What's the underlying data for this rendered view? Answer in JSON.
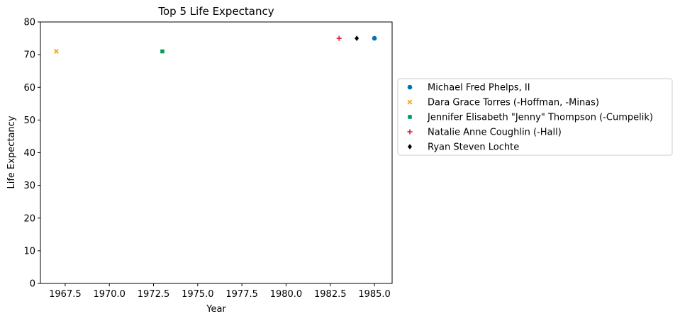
{
  "chart_data": {
    "type": "scatter",
    "title": "Top 5 Life Expectancy",
    "xlabel": "Year",
    "ylabel": "Life Expectancy",
    "xlim": [
      1966.1,
      1986.0
    ],
    "ylim": [
      0,
      80
    ],
    "xticks": [
      "1967.5",
      "1970.0",
      "1972.5",
      "1975.0",
      "1977.5",
      "1980.0",
      "1982.5",
      "1985.0"
    ],
    "yticks": [
      "0",
      "10",
      "20",
      "30",
      "40",
      "50",
      "60",
      "70",
      "80"
    ],
    "grid": false,
    "legend_placement": "right, outside",
    "series": [
      {
        "name": "Michael Fred Phelps, II",
        "marker": "circle",
        "color": "#0173b2",
        "x": [
          1985
        ],
        "y": [
          75
        ]
      },
      {
        "name": "Dara Grace Torres (-Hoffman, -Minas)",
        "marker": "x",
        "color": "#f4a62a",
        "x": [
          1967
        ],
        "y": [
          71
        ]
      },
      {
        "name": "Jennifer Elisabeth \"Jenny\" Thompson (-Cumpelik)",
        "marker": "square",
        "color": "#009e58",
        "x": [
          1973
        ],
        "y": [
          71
        ]
      },
      {
        "name": "Natalie Anne Coughlin (-Hall)",
        "marker": "plus",
        "color": "#e8284a",
        "x": [
          1983
        ],
        "y": [
          75
        ]
      },
      {
        "name": "Ryan Steven Lochte",
        "marker": "diamond",
        "color": "#000000",
        "x": [
          1984
        ],
        "y": [
          75
        ]
      }
    ]
  }
}
